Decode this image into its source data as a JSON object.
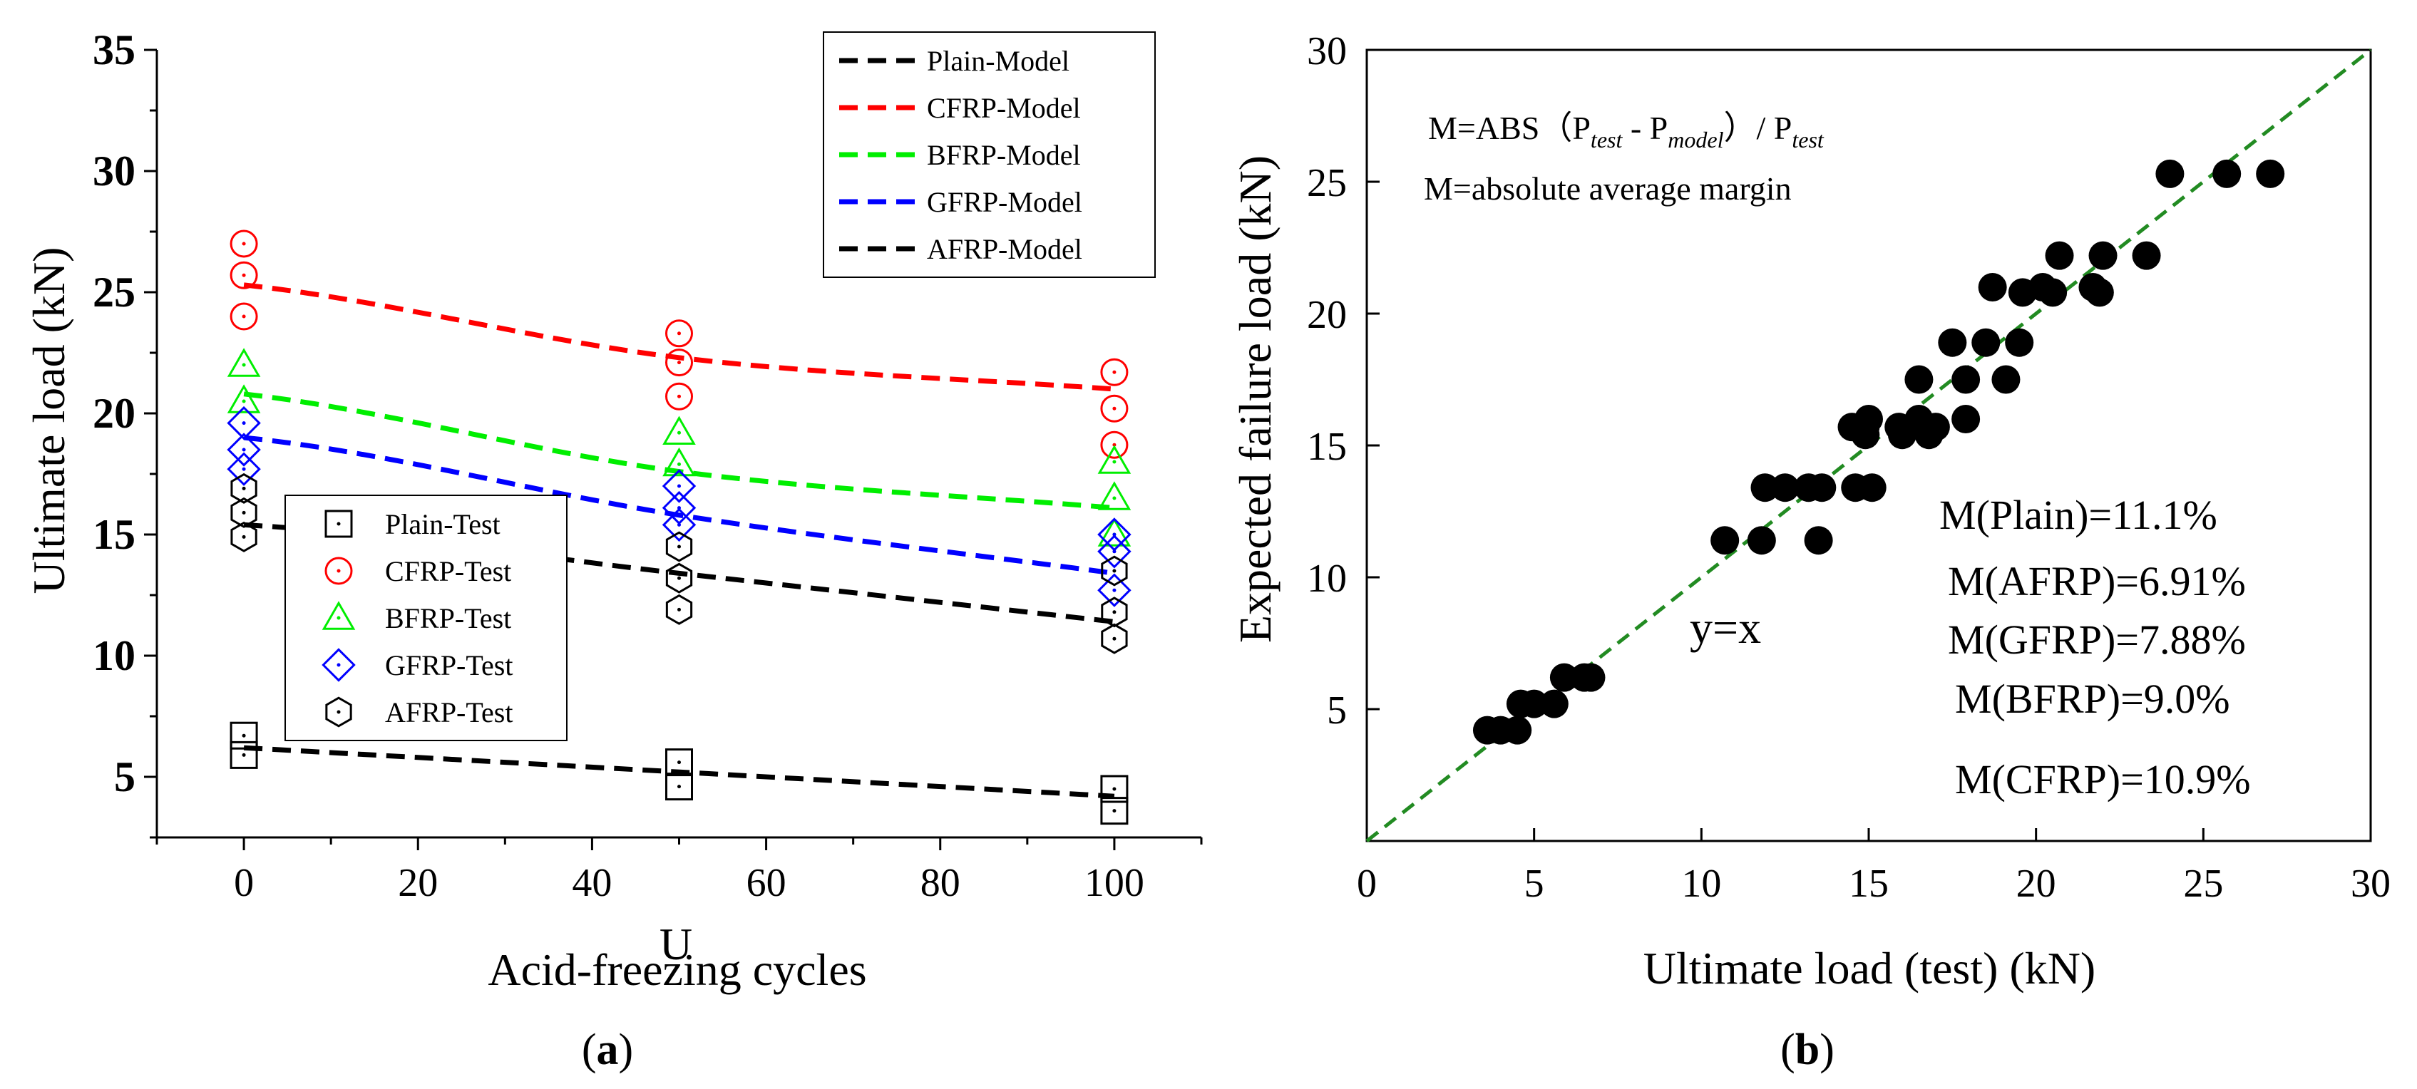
{
  "chart_data": [
    {
      "id": "a",
      "type": "scatter",
      "panel_label": "a",
      "xlabel": "Acid-freezing cycles",
      "ylabel": "Ultimate load (kN)",
      "xlim": [
        -10,
        110
      ],
      "ylim": [
        2.5,
        35
      ],
      "xticks": [
        0,
        20,
        40,
        60,
        80,
        100
      ],
      "yticks": [
        5,
        10,
        15,
        20,
        25,
        30,
        35
      ],
      "model_series": [
        {
          "name": "Plain-Model",
          "color": "#000000",
          "x": [
            0,
            100
          ],
          "y": [
            6.2,
            4.2
          ]
        },
        {
          "name": "CFRP-Model",
          "color": "#ff0000",
          "x": [
            0,
            50,
            100
          ],
          "y": [
            25.3,
            22.3,
            21.0
          ]
        },
        {
          "name": "BFRP-Model",
          "color": "#00ee00",
          "x": [
            0,
            50,
            100
          ],
          "y": [
            20.8,
            17.6,
            16.1
          ]
        },
        {
          "name": "GFRP-Model",
          "color": "#0000ff",
          "x": [
            0,
            50,
            100
          ],
          "y": [
            19.0,
            15.8,
            13.4
          ]
        },
        {
          "name": "AFRP-Model",
          "color": "#000000",
          "x": [
            0,
            50,
            100
          ],
          "y": [
            15.4,
            13.4,
            11.4
          ]
        }
      ],
      "test_series": [
        {
          "name": "Plain-Test",
          "color": "#000000",
          "marker": "square",
          "points": [
            [
              0,
              6.7
            ],
            [
              0,
              5.9
            ],
            [
              50,
              5.6
            ],
            [
              50,
              4.6
            ],
            [
              100,
              4.5
            ],
            [
              100,
              3.6
            ]
          ]
        },
        {
          "name": "CFRP-Test",
          "color": "#ff0000",
          "marker": "circle",
          "points": [
            [
              0,
              27.0
            ],
            [
              0,
              25.7
            ],
            [
              0,
              24.0
            ],
            [
              50,
              23.3
            ],
            [
              50,
              22.1
            ],
            [
              50,
              20.7
            ],
            [
              100,
              21.7
            ],
            [
              100,
              20.2
            ],
            [
              100,
              18.7
            ]
          ]
        },
        {
          "name": "BFRP-Test",
          "color": "#00ee00",
          "marker": "triangle",
          "points": [
            [
              0,
              22.0
            ],
            [
              0,
              20.5
            ],
            [
              50,
              19.2
            ],
            [
              50,
              17.9
            ],
            [
              100,
              18.0
            ],
            [
              100,
              16.5
            ],
            [
              100,
              15.0
            ]
          ]
        },
        {
          "name": "GFRP-Test",
          "color": "#0000ff",
          "marker": "diamond",
          "points": [
            [
              0,
              19.6
            ],
            [
              0,
              18.5
            ],
            [
              0,
              17.7
            ],
            [
              50,
              17.0
            ],
            [
              50,
              16.1
            ],
            [
              50,
              15.4
            ],
            [
              100,
              15.0
            ],
            [
              100,
              14.3
            ],
            [
              100,
              12.7
            ]
          ]
        },
        {
          "name": "AFRP-Test",
          "color": "#000000",
          "marker": "hexagon",
          "points": [
            [
              0,
              16.9
            ],
            [
              0,
              15.9
            ],
            [
              0,
              14.9
            ],
            [
              50,
              14.5
            ],
            [
              50,
              13.2
            ],
            [
              50,
              11.9
            ],
            [
              100,
              13.5
            ],
            [
              100,
              11.8
            ],
            [
              100,
              10.7
            ]
          ]
        }
      ],
      "legend_model_position": "top-right",
      "legend_test_position": "lower-left",
      "stray_label": "U"
    },
    {
      "id": "b",
      "type": "scatter",
      "panel_label": "b",
      "xlabel": "Ultimate load (test) (kN)",
      "ylabel": "Expected failure load (kN)",
      "xlim": [
        0,
        30
      ],
      "ylim": [
        0,
        30
      ],
      "xticks": [
        0,
        5,
        10,
        15,
        20,
        25,
        30
      ],
      "yticks": [
        5,
        10,
        15,
        20,
        25,
        30
      ],
      "reference_line": {
        "label": "y=x",
        "color": "#228b22",
        "from": [
          0,
          0
        ],
        "to": [
          30,
          30
        ]
      },
      "points": [
        [
          3.6,
          4.2
        ],
        [
          4.0,
          4.2
        ],
        [
          4.5,
          4.2
        ],
        [
          4.6,
          5.2
        ],
        [
          5.0,
          5.2
        ],
        [
          5.6,
          5.2
        ],
        [
          5.9,
          6.2
        ],
        [
          6.5,
          6.2
        ],
        [
          6.7,
          6.2
        ],
        [
          10.7,
          11.4
        ],
        [
          11.8,
          11.4
        ],
        [
          11.9,
          13.4
        ],
        [
          12.5,
          13.4
        ],
        [
          13.2,
          13.4
        ],
        [
          13.5,
          11.4
        ],
        [
          13.6,
          13.4
        ],
        [
          14.5,
          15.7
        ],
        [
          14.6,
          13.4
        ],
        [
          14.9,
          15.7
        ],
        [
          14.9,
          15.4
        ],
        [
          15.0,
          16.0
        ],
        [
          15.1,
          13.4
        ],
        [
          15.9,
          15.7
        ],
        [
          16.0,
          15.4
        ],
        [
          16.5,
          16.0
        ],
        [
          16.8,
          15.4
        ],
        [
          17.0,
          15.7
        ],
        [
          16.5,
          17.5
        ],
        [
          17.5,
          18.9
        ],
        [
          17.9,
          17.5
        ],
        [
          17.9,
          16.0
        ],
        [
          18.5,
          18.9
        ],
        [
          18.7,
          21.0
        ],
        [
          19.1,
          17.5
        ],
        [
          19.5,
          18.9
        ],
        [
          19.6,
          20.8
        ],
        [
          20.2,
          21.0
        ],
        [
          20.5,
          20.8
        ],
        [
          20.7,
          22.2
        ],
        [
          21.7,
          21.0
        ],
        [
          21.9,
          20.8
        ],
        [
          22.0,
          22.2
        ],
        [
          23.3,
          22.2
        ],
        [
          24.0,
          25.3
        ],
        [
          25.7,
          25.3
        ],
        [
          27.0,
          25.3
        ]
      ],
      "annotations": {
        "formula_prefix": "M=ABS（P",
        "formula_sub1": "test",
        "formula_mid": " - P",
        "formula_sub2": "model",
        "formula_suffix": "）/ P",
        "formula_sub3": "test",
        "definition": "M=absolute average margin",
        "margins": [
          "M(Plain)=11.1%",
          "M(AFRP)=6.91%",
          "M(GFRP)=7.88%",
          "M(BFRP)=9.0%",
          "M(CFRP)=10.9%"
        ]
      }
    }
  ]
}
